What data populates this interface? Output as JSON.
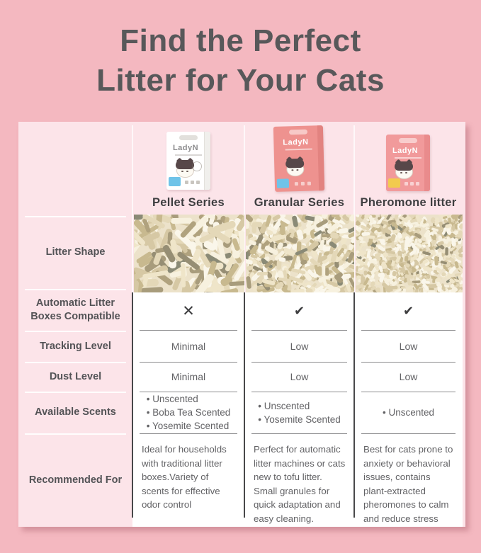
{
  "title": {
    "line1": "Find the Perfect",
    "line2": "Litter for Your Cats"
  },
  "brand": "LadyN",
  "row_labels": [
    "Litter Shape",
    "Automatic Litter Boxes Compatible",
    "Tracking Level",
    "Dust Level",
    "Available Scents",
    "Recommended For"
  ],
  "products": [
    {
      "name": "Pellet Series",
      "auto_compatible": "✕",
      "tracking_level": "Minimal",
      "dust_level": "Minimal",
      "scents": [
        "Unscented",
        "Boba Tea Scented",
        "Yosemite Scented"
      ],
      "recommended_for": "Ideal for households with traditional litter boxes.Variety of scents for effective odor control",
      "litter_photo": "large tofu litter pellets"
    },
    {
      "name": "Granular Series",
      "auto_compatible": "✔",
      "tracking_level": "Low",
      "dust_level": "Low",
      "scents": [
        "Unscented",
        "Yosemite Scented"
      ],
      "recommended_for": "Perfect for automatic litter machines or cats new to tofu litter. Small granules for quick adaptation and easy cleaning.",
      "litter_photo": "medium tofu litter granules"
    },
    {
      "name": "Pheromone litter",
      "auto_compatible": "✔",
      "tracking_level": "Low",
      "dust_level": "Low",
      "scents": [
        "Unscented"
      ],
      "recommended_for": "Best for cats prone to anxiety or behavioral issues, contains plant-extracted pheromones to calm and reduce stress",
      "litter_photo": "fine tofu litter granules"
    }
  ],
  "colors": {
    "bg": "#f4b8c0",
    "panel": "#fce4e9",
    "ink": "#58585a",
    "text": "#626265",
    "line-dark": "#48484a",
    "line-gray": "#8c8c8e",
    "box-coral": "#ee928f",
    "box-pink": "#f19a9b",
    "chip-blue": "#6fc3e8",
    "chip-yellow": "#f2cb4e"
  },
  "chart_data": {
    "type": "table",
    "title": "Find the Perfect Litter for Your Cats",
    "columns": [
      "Pellet Series",
      "Granular Series",
      "Pheromone litter"
    ],
    "row_headers": [
      "Litter Shape",
      "Automatic Litter Boxes Compatible",
      "Tracking Level",
      "Dust Level",
      "Available Scents",
      "Recommended For"
    ],
    "rows": [
      [
        "large tofu litter pellets (photo)",
        "medium tofu litter granules (photo)",
        "fine tofu litter granules (photo)"
      ],
      [
        "✕",
        "✔",
        "✔"
      ],
      [
        "Minimal",
        "Low",
        "Low"
      ],
      [
        "Minimal",
        "Low",
        "Low"
      ],
      [
        "Unscented; Boba Tea Scented; Yosemite Scented",
        "Unscented; Yosemite Scented",
        "Unscented"
      ],
      [
        "Ideal for households with traditional litter boxes.Variety of scents for effective odor control",
        "Perfect for automatic litter machines or cats new to tofu litter. Small granules for quick adaptation and easy cleaning.",
        "Best for cats prone to anxiety or behavioral issues, contains plant-extracted pheromones to calm and reduce stress"
      ]
    ]
  }
}
